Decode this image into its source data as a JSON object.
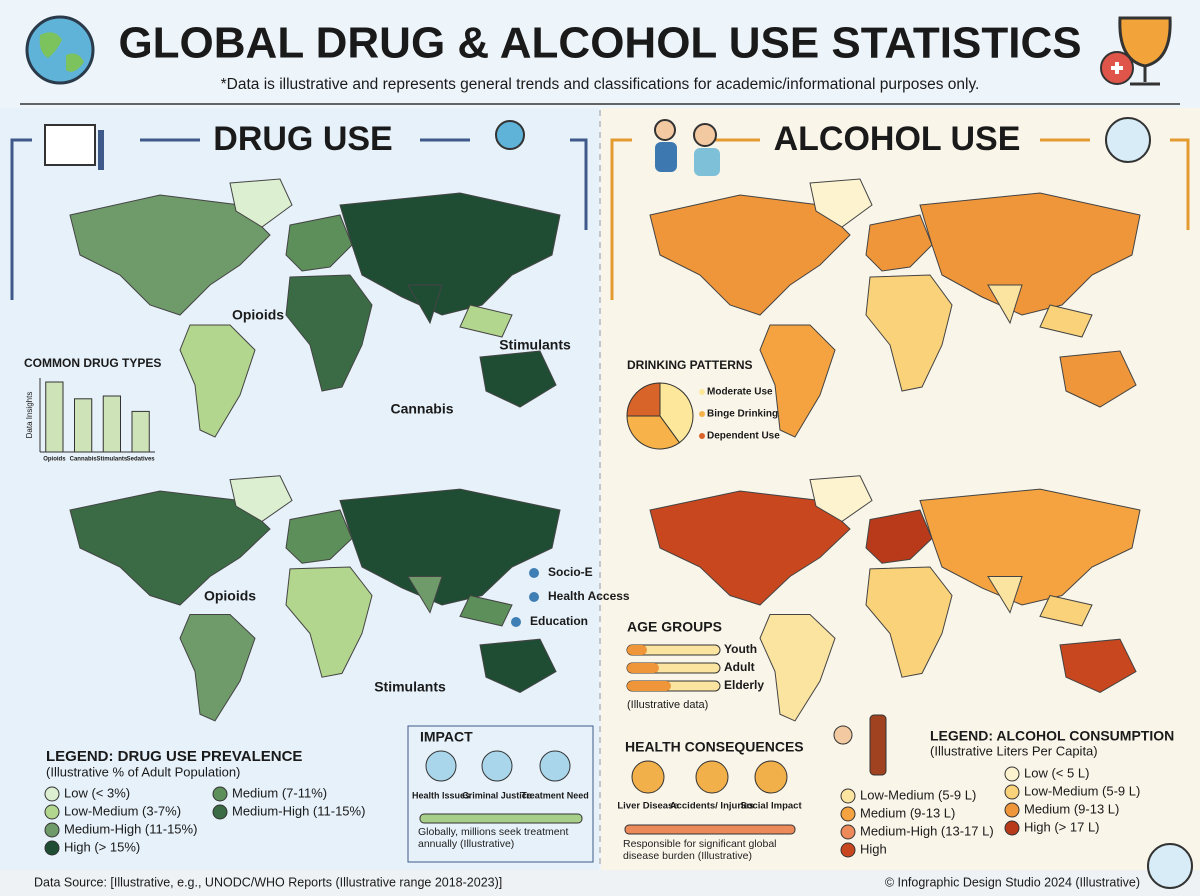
{
  "header": {
    "title": "GLOBAL DRUG & ALCOHOL USE STATISTICS",
    "subtitle": "*Data is illustrative and represents general trends and classifications for academic/informational purposes only."
  },
  "drug": {
    "title": "DRUG USE",
    "map_labels": [
      "Opioids",
      "Stimulants",
      "Cannabis",
      "Opioids",
      "Stimulants"
    ],
    "drug_types_chart": {
      "type": "bar",
      "title": "COMMON DRUG TYPES",
      "y_label": "Data Insights",
      "categories": [
        "Opioids",
        "Cannabis",
        "Stimulants",
        "Sedatives"
      ],
      "values": [
        100,
        76,
        80,
        58
      ],
      "ylim": [
        0,
        100
      ],
      "color": "#cfe3b8"
    },
    "factors": [
      "Socio-E",
      "Health Access",
      "Education"
    ],
    "legend": {
      "title": "LEGEND: DRUG USE PREVALENCE",
      "subtitle": "(Illustrative % of Adult Population)",
      "items": [
        {
          "label": "Low (< 3%)",
          "color": "#dcefd0"
        },
        {
          "label": "Low-Medium (3-7%)",
          "color": "#b3d68e"
        },
        {
          "label": "Medium-High (11-15%)",
          "color": "#6f9a6a"
        },
        {
          "label": "High (> 15%)",
          "color": "#1f4d34"
        },
        {
          "label": "Medium (7-11%)",
          "color": "#5d8f5a"
        },
        {
          "label": "Medium-High (11-15%)",
          "color": "#3a6b45"
        }
      ]
    },
    "impact": {
      "title": "IMPACT",
      "items": [
        "Health Issues",
        "Criminal Justice",
        "Treatment Need"
      ],
      "note": "Globally, millions seek treatment annually (Illustrative)"
    }
  },
  "alcohol": {
    "title": "ALCOHOL USE",
    "patterns_chart": {
      "type": "pie",
      "title": "DRINKING PATTERNS",
      "labels": [
        "Moderate Use",
        "Binge Drinking",
        "Dependent Use"
      ],
      "values": [
        40,
        35,
        25
      ],
      "colors": [
        "#fde79a",
        "#f7b24a",
        "#d9642a"
      ]
    },
    "age_groups": {
      "title": "AGE GROUPS",
      "items": [
        "Youth",
        "Adult",
        "Elderly"
      ],
      "note": "(Illustrative data)"
    },
    "health": {
      "title": "HEALTH CONSEQUENCES",
      "items": [
        "Liver Disease",
        "Accidents/ Injuries",
        "Social Impact"
      ],
      "note": "Responsible for significant global disease burden (Illustrative)"
    },
    "legend": {
      "title": "LEGEND: ALCOHOL CONSUMPTION",
      "subtitle": "(Illustrative Liters Per Capita)",
      "items": [
        {
          "label": "Low-Medium (5-9 L)",
          "color": "#fbe3a0"
        },
        {
          "label": "Medium (9-13 L)",
          "color": "#f4a340"
        },
        {
          "label": "Medium-High (13-17 L)",
          "color": "#ec8a5a"
        },
        {
          "label": "High",
          "color": "#c9471f"
        },
        {
          "label": "Low (< 5 L)",
          "color": "#fdf3cf"
        },
        {
          "label": "Low-Medium (5-9 L)",
          "color": "#f9d27a"
        },
        {
          "label": "Medium (9-13 L)",
          "color": "#f0963a"
        },
        {
          "label": "High (> 17 L)",
          "color": "#b83a1a"
        }
      ]
    }
  },
  "footer": {
    "source": "Data Source: [Illustrative, e.g., UNODC/WHO Reports (Illustrative range 2018-2023)]",
    "credit": "© Infographic Design Studio 2024 (Illustrative)"
  }
}
